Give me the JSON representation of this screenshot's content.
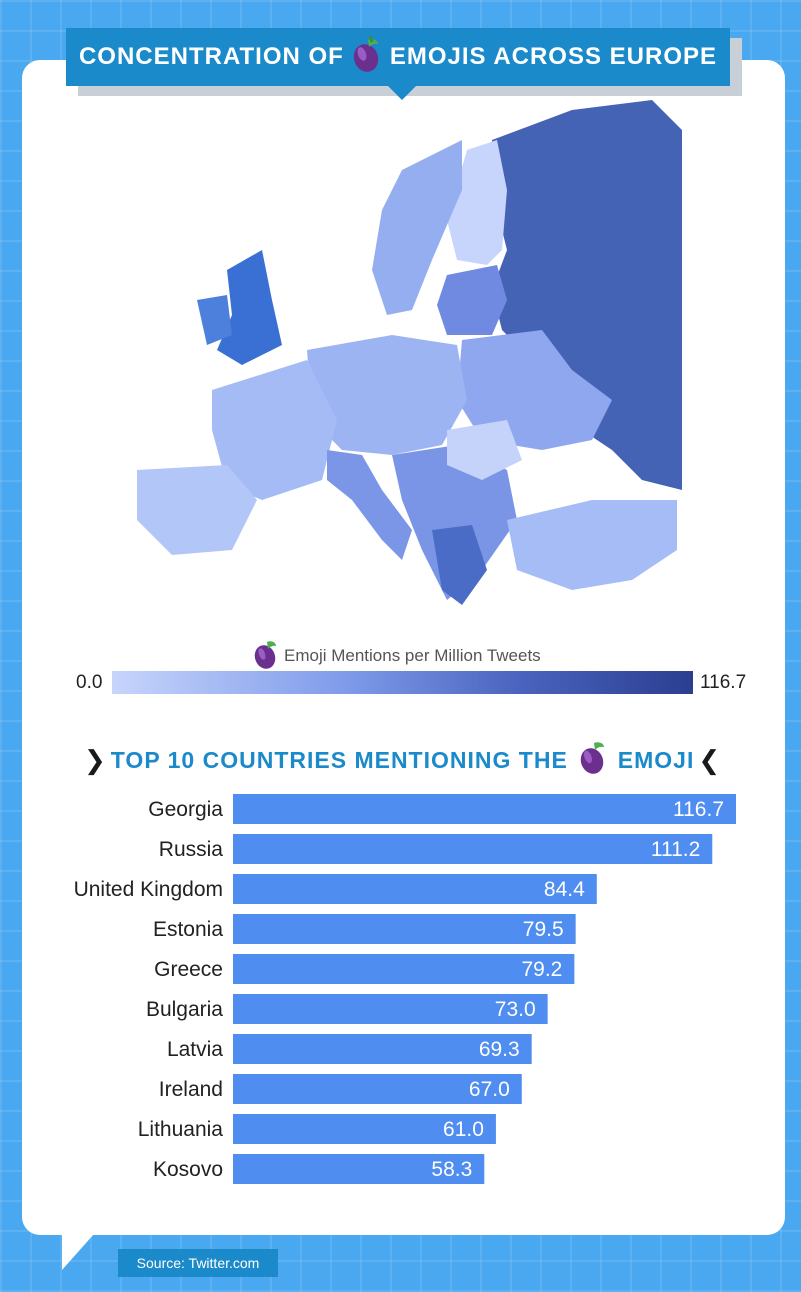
{
  "header": {
    "title_part1": "Concentration of",
    "title_part2": "Emojis Across Europe",
    "emoji_icon": "eggplant-icon"
  },
  "legend": {
    "title": "Emoji Mentions per Million Tweets",
    "min_label": "0.0",
    "max_label": "116.7",
    "colors": [
      "#c7d5fc",
      "#7f9bea",
      "#4a64bf",
      "#2b3e90"
    ]
  },
  "section": {
    "title_part1": "Top 10 Countries Mentioning the",
    "title_part2": "Emoji",
    "left_chevron": "❯",
    "right_chevron": "❮"
  },
  "footer": {
    "source": "Source: Twitter.com"
  },
  "colors": {
    "accent": "#1b8acb",
    "background": "#4aa8f0",
    "bar": "#4f8df0"
  },
  "chart_data": [
    {
      "type": "bar",
      "orientation": "horizontal",
      "categories": [
        "Georgia",
        "Russia",
        "United Kingdom",
        "Estonia",
        "Greece",
        "Bulgaria",
        "Latvia",
        "Ireland",
        "Lithuania",
        "Kosovo"
      ],
      "values": [
        116.7,
        111.2,
        84.4,
        79.5,
        79.2,
        73.0,
        69.3,
        67.0,
        61.0,
        58.3
      ],
      "value_labels": [
        "116.7",
        "111.2",
        "84.4",
        "79.5",
        "79.2",
        "73.0",
        "69.3",
        "67.0",
        "61.0",
        "58.3"
      ],
      "xlim": [
        0,
        116.7
      ]
    }
  ]
}
